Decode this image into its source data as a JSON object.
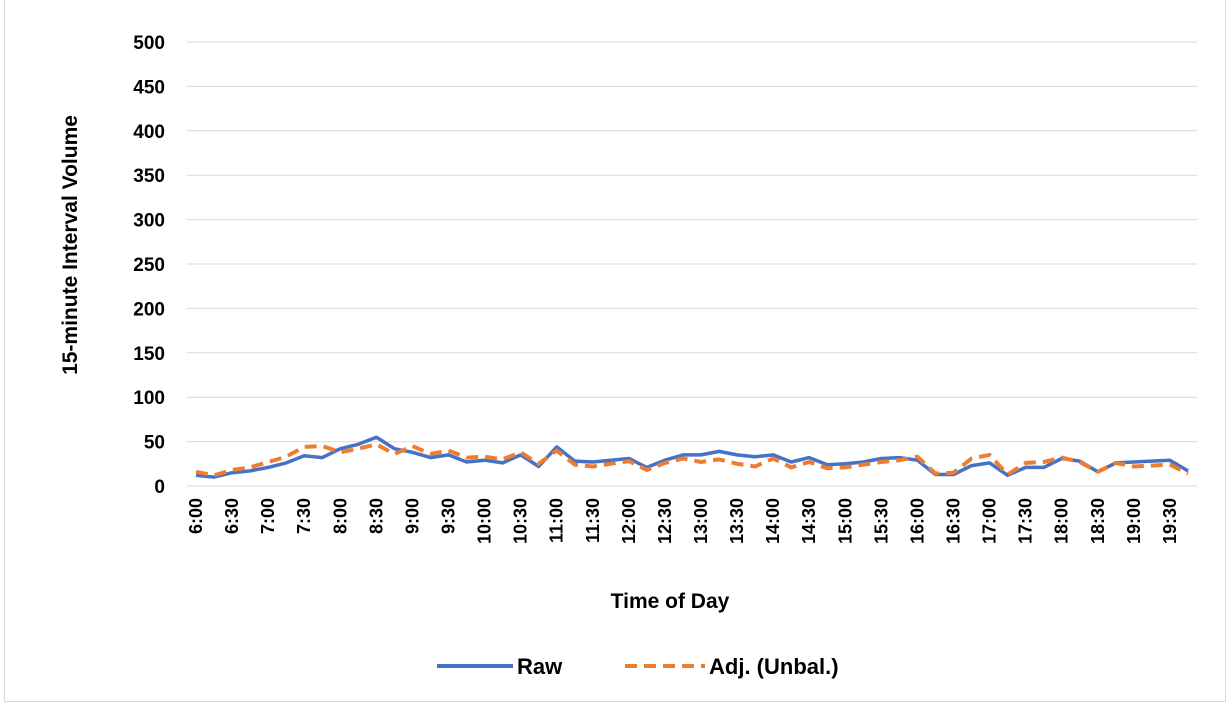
{
  "chart_data": {
    "type": "line",
    "title": "",
    "xlabel": "Time of Day",
    "ylabel": "15-minute Interval Volume",
    "ylim": [
      0,
      500
    ],
    "yticks": [
      0,
      50,
      100,
      150,
      200,
      250,
      300,
      350,
      400,
      450,
      500
    ],
    "grid": true,
    "legend_position": "bottom",
    "categories": [
      "6:00",
      "6:15",
      "6:30",
      "6:45",
      "7:00",
      "7:15",
      "7:30",
      "7:45",
      "8:00",
      "8:15",
      "8:30",
      "8:45",
      "9:00",
      "9:15",
      "9:30",
      "9:45",
      "10:00",
      "10:15",
      "10:30",
      "10:45",
      "11:00",
      "11:15",
      "11:30",
      "11:45",
      "12:00",
      "12:15",
      "12:30",
      "12:45",
      "13:00",
      "13:15",
      "13:30",
      "13:45",
      "14:00",
      "14:15",
      "14:30",
      "14:45",
      "15:00",
      "15:15",
      "15:30",
      "15:45",
      "16:00",
      "16:15",
      "16:30",
      "16:45",
      "17:00",
      "17:15",
      "17:30",
      "17:45",
      "18:00",
      "18:15",
      "18:30",
      "18:45",
      "19:00",
      "19:15",
      "19:30",
      "19:45"
    ],
    "tick_labels": [
      "6:00",
      "6:30",
      "7:00",
      "7:30",
      "8:00",
      "8:30",
      "9:00",
      "9:30",
      "10:00",
      "10:30",
      "11:00",
      "11:30",
      "12:00",
      "12:30",
      "13:00",
      "13:30",
      "14:00",
      "14:30",
      "15:00",
      "15:30",
      "16:00",
      "16:30",
      "17:00",
      "17:30",
      "18:00",
      "18:30",
      "19:00",
      "19:30"
    ],
    "series": [
      {
        "name": "Raw",
        "color": "#4472C4",
        "style": "solid",
        "values": [
          12,
          10,
          15,
          17,
          21,
          26,
          34,
          32,
          42,
          47,
          55,
          42,
          38,
          32,
          35,
          27,
          29,
          26,
          35,
          22,
          44,
          28,
          27,
          29,
          31,
          21,
          29,
          35,
          35,
          39,
          35,
          33,
          35,
          27,
          32,
          24,
          25,
          27,
          31,
          32,
          29,
          13,
          13,
          23,
          26,
          12,
          21,
          21,
          31,
          28,
          16,
          26,
          27,
          28,
          29,
          17
        ]
      },
      {
        "name": "Adj. (Unbal.)",
        "color": "#ED7D31",
        "style": "dashed",
        "values": [
          16,
          12,
          18,
          21,
          27,
          33,
          44,
          45,
          38,
          42,
          47,
          36,
          45,
          36,
          40,
          32,
          33,
          30,
          38,
          25,
          40,
          24,
          22,
          25,
          28,
          18,
          26,
          31,
          27,
          30,
          25,
          22,
          31,
          21,
          27,
          20,
          21,
          24,
          27,
          29,
          33,
          14,
          15,
          31,
          35,
          13,
          26,
          27,
          32,
          27,
          16,
          26,
          22,
          23,
          24,
          14
        ]
      }
    ]
  },
  "legend": {
    "raw_label": "Raw",
    "adj_label": "Adj. (Unbal.)"
  }
}
